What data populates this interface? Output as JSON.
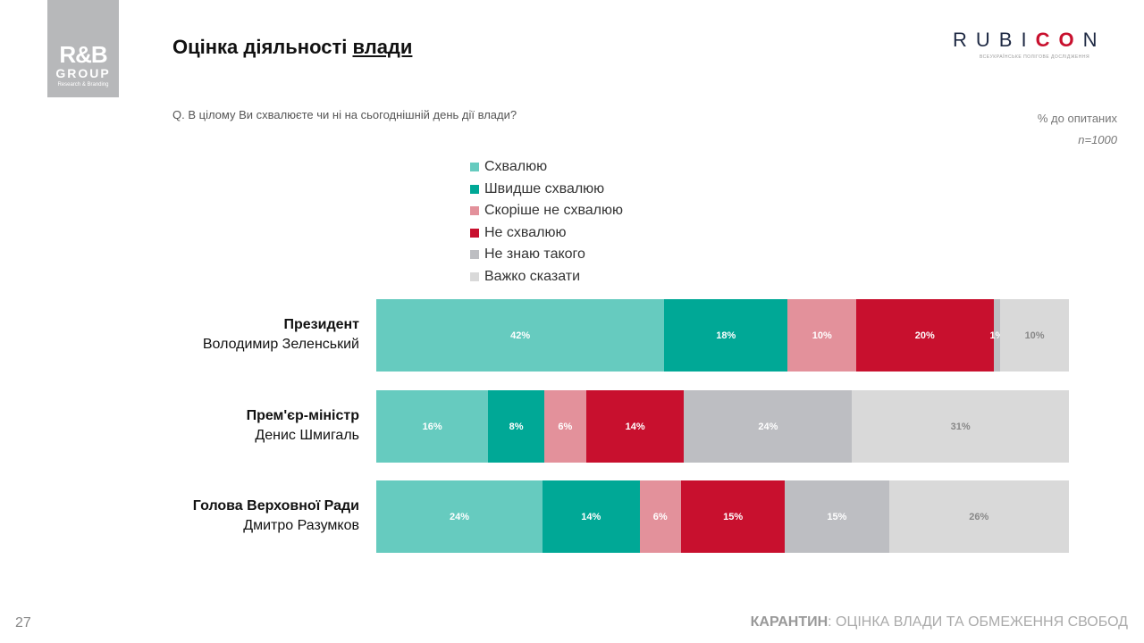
{
  "header": {
    "title_plain": "Оцінка діяльності ",
    "title_underlined": "влади",
    "question": "Q. В цілому Ви схвалюєте чи ні на сьогоднішній день дії влади?",
    "unit": "% до опитаних",
    "sample": "n=1000"
  },
  "logos": {
    "rb_main": "R&B",
    "rb_group": "GROUP",
    "rb_sub": "Research & Branding",
    "rubicon_a": "RUBI",
    "rubicon_b": "CO",
    "rubicon_c": "N",
    "rubicon_sub": "ВСЕУКРАЇНСЬКЕ ПОЛІГОВЕ ДОСЛІДЖЕННЯ"
  },
  "footer": {
    "page": "27",
    "section_bold": "КАРАНТИН",
    "section_rest": ": ОЦІНКА ВЛАДИ ТА ОБМЕЖЕННЯ СВОБОД"
  },
  "chart_data": {
    "type": "bar",
    "orientation": "horizontal-stacked-100",
    "categories": [
      {
        "title": "Президент",
        "name": "Володимир Зеленський"
      },
      {
        "title": "Прем'єр-міністр",
        "name": "Денис Шмигаль"
      },
      {
        "title": "Голова Верховної Ради",
        "name": "Дмитро Разумков"
      }
    ],
    "series": [
      {
        "name": "Схвалюю",
        "color": "#66cbbf",
        "label_color": "#ffffff",
        "values": [
          42,
          16,
          24
        ]
      },
      {
        "name": "Швидше схвалюю",
        "color": "#00a896",
        "label_color": "#ffffff",
        "values": [
          18,
          8,
          14
        ]
      },
      {
        "name": "Скоріше не схвалюю",
        "color": "#e3919b",
        "label_color": "#ffffff",
        "values": [
          10,
          6,
          6
        ]
      },
      {
        "name": "Не схвалюю",
        "color": "#c8102e",
        "label_color": "#ffffff",
        "values": [
          20,
          14,
          15
        ]
      },
      {
        "name": "Не знаю такого",
        "color": "#bdbec2",
        "label_color": "#ffffff",
        "values": [
          1,
          24,
          15
        ]
      },
      {
        "name": "Важко сказати",
        "color": "#d9d9d9",
        "label_color": "#888888",
        "values": [
          10,
          31,
          26
        ]
      }
    ],
    "value_suffix": "%",
    "legend_position": "top",
    "grid": false
  }
}
